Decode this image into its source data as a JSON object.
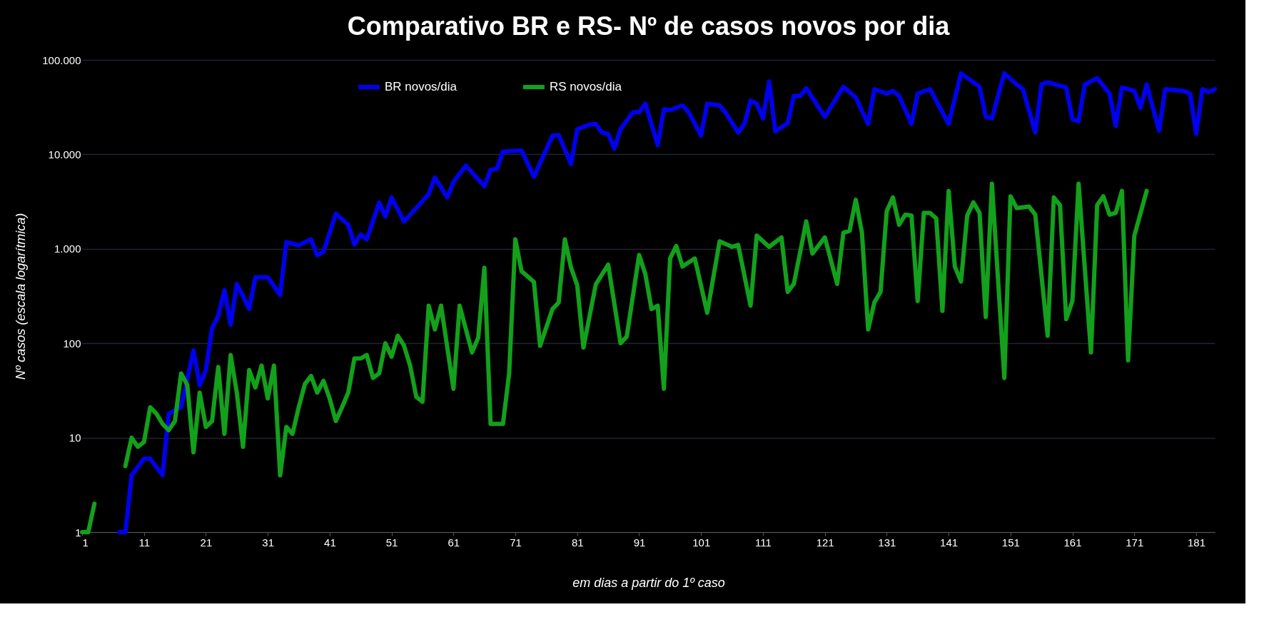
{
  "chart_data": {
    "type": "line",
    "title": "Comparativo BR e RS- Nº de casos novos por dia",
    "xlabel": "em dias a partir do 1º caso",
    "ylabel": "Nº casos (escala logarítmica)",
    "log": "y",
    "grid": "y",
    "legend": "top",
    "line_style": "solid",
    "marker": "none",
    "xlim": [
      1,
      184
    ],
    "xticks": [
      1,
      11,
      21,
      31,
      41,
      51,
      61,
      71,
      81,
      91,
      101,
      111,
      121,
      131,
      141,
      151,
      161,
      171,
      181
    ],
    "ylim": [
      1,
      100000
    ],
    "yticks": [
      1,
      10,
      100,
      {
        "value": 1000,
        "label": "1.000"
      },
      {
        "value": 10000,
        "label": "10.000"
      },
      {
        "value": 100000,
        "label": "100.000"
      }
    ],
    "series": [
      {
        "name": "BR novos/dia",
        "color": "#0000ee",
        "x": [
          7,
          8,
          9,
          11,
          12,
          14,
          15,
          17,
          19,
          20,
          21,
          22,
          23,
          24,
          25,
          26,
          27,
          28,
          29,
          31,
          33,
          34,
          36,
          38,
          39,
          40,
          42,
          44,
          45,
          46,
          47,
          49,
          50,
          51,
          53,
          56,
          57,
          58,
          60,
          61,
          63,
          66,
          67,
          68,
          69,
          72,
          74,
          77,
          78,
          80,
          81,
          83,
          84,
          85,
          86,
          87,
          88,
          90,
          91,
          92,
          94,
          95,
          96,
          98,
          99,
          101,
          102,
          104,
          105,
          107,
          108,
          109,
          110,
          111,
          112,
          113,
          115,
          116,
          117,
          118,
          121,
          124,
          126,
          128,
          129,
          131,
          132,
          133,
          135,
          136,
          138,
          141,
          143,
          146,
          147,
          148,
          150,
          152,
          153,
          155,
          156,
          157,
          160,
          161,
          162,
          163,
          165,
          167,
          168,
          169,
          171,
          172,
          173,
          175,
          176,
          179,
          180,
          181,
          182,
          183,
          184
        ],
        "values": [
          1,
          1,
          4,
          6,
          6,
          4,
          18,
          21,
          84,
          36,
          52,
          145,
          195,
          365,
          157,
          425,
          315,
          230,
          500,
          500,
          325,
          1180,
          1090,
          1260,
          855,
          930,
          2350,
          1800,
          1110,
          1420,
          1260,
          3100,
          2200,
          3500,
          1950,
          3200,
          3800,
          5700,
          3500,
          5100,
          7600,
          4600,
          6900,
          7000,
          10700,
          11000,
          5800,
          15800,
          16000,
          7900,
          18500,
          20700,
          21000,
          17000,
          16500,
          11500,
          18500,
          28000,
          28000,
          34500,
          12500,
          30000,
          29500,
          33000,
          28000,
          15800,
          34500,
          33000,
          27500,
          17000,
          21000,
          37000,
          34500,
          24000,
          59000,
          17500,
          21500,
          41500,
          41500,
          50000,
          25000,
          52000,
          40000,
          21000,
          49000,
          44000,
          47000,
          41500,
          21000,
          44000,
          49000,
          21000,
          72000,
          52000,
          25000,
          24000,
          72000,
          55000,
          49000,
          17000,
          55000,
          58000,
          51000,
          23500,
          22500,
          55000,
          64000,
          44000,
          20000,
          51000,
          47000,
          31000,
          55000,
          17800,
          49000,
          47000,
          44000,
          16500,
          49000,
          46000,
          49000
        ]
      },
      {
        "name": "RS novos/dia",
        "color": "#13a01c",
        "x": [
          1,
          2,
          3,
          4,
          8,
          9,
          10,
          11,
          12,
          13,
          14,
          15,
          16,
          17,
          18,
          19,
          20,
          21,
          22,
          23,
          24,
          25,
          26,
          27,
          28,
          29,
          30,
          31,
          32,
          33,
          34,
          35,
          36,
          37,
          38,
          39,
          40,
          41,
          42,
          43,
          44,
          45,
          46,
          47,
          48,
          49,
          50,
          51,
          52,
          53,
          54,
          55,
          56,
          57,
          58,
          59,
          61,
          62,
          64,
          65,
          66,
          67,
          69,
          70,
          71,
          72,
          74,
          75,
          77,
          78,
          79,
          80,
          81,
          82,
          84,
          86,
          88,
          89,
          91,
          92,
          93,
          94,
          95,
          96,
          97,
          98,
          100,
          102,
          104,
          106,
          107,
          109,
          110,
          112,
          114,
          115,
          116,
          118,
          119,
          121,
          123,
          124,
          125,
          126,
          127,
          128,
          129,
          130,
          131,
          132,
          133,
          134,
          135,
          136,
          137,
          138,
          139,
          140,
          141,
          142,
          143,
          144,
          145,
          146,
          147,
          148,
          150,
          151,
          152,
          154,
          155,
          157,
          158,
          159,
          160,
          161,
          162,
          164,
          165,
          166,
          167,
          168,
          169,
          170,
          171,
          173
        ],
        "values": [
          1,
          1,
          2,
          null,
          5,
          10,
          8,
          9,
          21,
          18,
          14,
          12,
          15,
          48,
          36,
          7,
          30,
          13,
          15,
          56,
          11,
          75,
          30,
          8,
          52,
          34,
          58,
          26,
          58,
          4,
          13,
          11,
          21,
          37,
          45,
          30,
          40,
          26,
          15,
          21,
          30,
          69,
          69,
          75,
          43,
          48,
          100,
          72,
          120,
          95,
          58,
          27,
          24,
          250,
          140,
          250,
          33,
          250,
          80,
          114,
          630,
          14,
          14,
          48,
          1260,
          580,
          445,
          94,
          230,
          270,
          1260,
          630,
          410,
          90,
          420,
          680,
          100,
          118,
          860,
          540,
          230,
          250,
          33,
          790,
          1070,
          650,
          790,
          210,
          1200,
          1050,
          1100,
          250,
          1380,
          1050,
          1320,
          350,
          425,
          1950,
          890,
          1320,
          425,
          1480,
          1550,
          3300,
          1480,
          140,
          270,
          350,
          2500,
          3500,
          1800,
          2300,
          2250,
          280,
          2400,
          2400,
          2100,
          220,
          4100,
          650,
          450,
          2250,
          3100,
          2400,
          190,
          4900,
          43,
          3600,
          2700,
          2800,
          2300,
          120,
          3500,
          2900,
          180,
          280,
          4900,
          80,
          2900,
          3600,
          2300,
          2400,
          4100,
          66,
          1370,
          4100
        ]
      }
    ]
  }
}
